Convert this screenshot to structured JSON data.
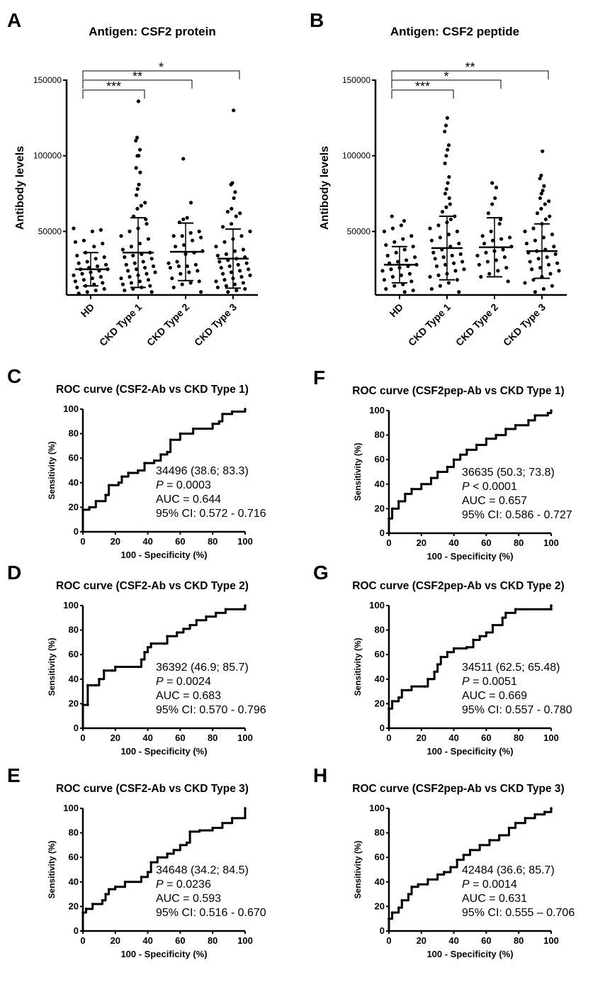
{
  "chart_data": [
    {
      "panel": "A",
      "type": "scatter",
      "title": "Antigen: CSF2 protein",
      "ylabel": "Antibody levels",
      "xlabel": "",
      "ylim": [
        8000,
        150000
      ],
      "yticks": [
        "50000",
        "100000",
        "150000"
      ],
      "ytick_values": [
        50000,
        100000,
        150000
      ],
      "categories": [
        "HD",
        "CKD Type 1",
        "CKD Type 2",
        "CKD Type 3"
      ],
      "groups": [
        {
          "name": "HD",
          "mean": 25000,
          "sd": 11000,
          "values": [
            52000,
            51000,
            50000,
            44000,
            43000,
            42000,
            40000,
            36000,
            34000,
            33000,
            32000,
            30000,
            29000,
            28000,
            27000,
            26000,
            25000,
            25000,
            24000,
            23000,
            22000,
            21000,
            20000,
            19000,
            18000,
            17000,
            16000,
            15000,
            14000,
            13000,
            12000,
            11000,
            10000,
            9000
          ]
        },
        {
          "name": "CKD Type 1",
          "mean": 36000,
          "sd": 23000,
          "values": [
            136000,
            112000,
            110000,
            104000,
            100000,
            100000,
            92000,
            89000,
            81000,
            78000,
            74000,
            69000,
            67000,
            65000,
            60000,
            58000,
            55000,
            52000,
            50000,
            47000,
            45000,
            42000,
            40000,
            38000,
            36000,
            35000,
            34000,
            33000,
            32000,
            30000,
            29000,
            28000,
            27000,
            26000,
            25000,
            24000,
            23000,
            22000,
            21000,
            20000,
            19000,
            18000,
            17000,
            16000,
            15000,
            14000,
            13000,
            12000,
            11000,
            10000
          ]
        },
        {
          "name": "CKD Type 2",
          "mean": 36500,
          "sd": 19000,
          "values": [
            98000,
            69000,
            59000,
            58000,
            56000,
            50000,
            49000,
            47000,
            47000,
            46000,
            44000,
            41000,
            40000,
            37000,
            36000,
            35000,
            30000,
            29000,
            28000,
            27000,
            27000,
            26000,
            24000,
            23000,
            22000,
            19000,
            17000,
            16000,
            15000,
            13000,
            10000
          ]
        },
        {
          "name": "CKD Type 3",
          "mean": 32000,
          "sd": 19500,
          "values": [
            130000,
            82000,
            81000,
            76000,
            72000,
            65000,
            63000,
            62000,
            60000,
            55000,
            53000,
            50000,
            47000,
            45000,
            43000,
            40000,
            38000,
            37000,
            35000,
            34000,
            33000,
            32000,
            31000,
            30000,
            29000,
            28000,
            27000,
            26000,
            25000,
            24000,
            23000,
            22000,
            21000,
            20000,
            19000,
            18000,
            17000,
            16000,
            15000,
            14000,
            13000,
            12000,
            11000,
            10000
          ]
        }
      ],
      "significance": [
        {
          "from": 0,
          "to": 1,
          "label": "***"
        },
        {
          "from": 0,
          "to": 2,
          "label": "**"
        },
        {
          "from": 0,
          "to": 3,
          "label": "*"
        }
      ]
    },
    {
      "panel": "B",
      "type": "scatter",
      "title": "Antigen: CSF2 peptide",
      "ylabel": "Antibody levels",
      "xlabel": "",
      "ylim": [
        8000,
        150000
      ],
      "yticks": [
        "50000",
        "100000",
        "150000"
      ],
      "ytick_values": [
        50000,
        100000,
        150000
      ],
      "categories": [
        "HD",
        "CKD Type 1",
        "CKD Type 2",
        "CKD Type 3"
      ],
      "groups": [
        {
          "name": "HD",
          "mean": 28000,
          "sd": 12000,
          "values": [
            60000,
            57000,
            54000,
            52000,
            50000,
            47000,
            45000,
            43000,
            41000,
            40000,
            38000,
            36000,
            34000,
            33000,
            31000,
            30000,
            29000,
            28000,
            27000,
            26000,
            25000,
            24000,
            22000,
            21000,
            20000,
            18000,
            17000,
            15000,
            14000,
            12000,
            11000,
            10000
          ]
        },
        {
          "name": "CKD Type 1",
          "mean": 39000,
          "sd": 21000,
          "values": [
            125000,
            120000,
            116000,
            107000,
            104000,
            100000,
            95000,
            86000,
            82000,
            78000,
            75000,
            72000,
            68000,
            66000,
            63000,
            60000,
            58000,
            56000,
            54000,
            52000,
            50000,
            48000,
            46000,
            44000,
            42000,
            40000,
            38000,
            36000,
            35000,
            34000,
            33000,
            32000,
            30000,
            29000,
            28000,
            27000,
            25000,
            24000,
            22000,
            21000,
            20000,
            18000,
            16000,
            14000,
            12000,
            10000
          ]
        },
        {
          "name": "CKD Type 2",
          "mean": 39500,
          "sd": 19500,
          "values": [
            82000,
            79000,
            72000,
            68000,
            62000,
            58000,
            55000,
            50000,
            47000,
            46000,
            45000,
            44000,
            42000,
            40000,
            38000,
            37000,
            36000,
            34000,
            33000,
            31000,
            30000,
            28000,
            26000,
            24000,
            22000,
            20000,
            17000
          ]
        },
        {
          "name": "CKD Type 3",
          "mean": 37000,
          "sd": 18000,
          "values": [
            103000,
            87000,
            85000,
            80000,
            77000,
            75000,
            72000,
            70000,
            68000,
            65000,
            62000,
            60000,
            58000,
            55000,
            52000,
            50000,
            48000,
            46000,
            44000,
            42000,
            40000,
            38000,
            37000,
            36000,
            35000,
            33000,
            32000,
            30000,
            29000,
            28000,
            26000,
            25000,
            24000,
            22000,
            20000,
            18000,
            16000,
            14000,
            12000,
            10000
          ]
        }
      ],
      "significance": [
        {
          "from": 0,
          "to": 1,
          "label": "***"
        },
        {
          "from": 0,
          "to": 2,
          "label": "*"
        },
        {
          "from": 0,
          "to": 3,
          "label": "**"
        }
      ]
    },
    {
      "panel": "C",
      "type": "line",
      "title": "ROC curve (CSF2-Ab vs CKD Type 1)",
      "xlabel": "100 - Specificity (%)",
      "ylabel": "Sensitivity (%)",
      "xlim": [
        0,
        100
      ],
      "ylim": [
        0,
        100
      ],
      "ticks": [
        "0",
        "20",
        "40",
        "60",
        "80",
        "100"
      ],
      "annotation": {
        "cutoff": "34496 (38.6; 83.3)",
        "p_symbol": "P",
        "p_rest": " = 0.0003",
        "auc": "AUC = 0.644",
        "ci": "95% CI: 0.572 - 0.716"
      },
      "points": [
        [
          0,
          0
        ],
        [
          0,
          18
        ],
        [
          4,
          20
        ],
        [
          8,
          25
        ],
        [
          14,
          30
        ],
        [
          16,
          38
        ],
        [
          22,
          40
        ],
        [
          24,
          45
        ],
        [
          28,
          48
        ],
        [
          34,
          50
        ],
        [
          38,
          56
        ],
        [
          44,
          58
        ],
        [
          48,
          63
        ],
        [
          52,
          65
        ],
        [
          54,
          75
        ],
        [
          60,
          80
        ],
        [
          68,
          84
        ],
        [
          80,
          88
        ],
        [
          84,
          90
        ],
        [
          86,
          96
        ],
        [
          92,
          98
        ],
        [
          100,
          100
        ]
      ]
    },
    {
      "panel": "D",
      "type": "line",
      "title": "ROC curve (CSF2-Ab vs CKD Type 2)",
      "xlabel": "100 - Specificity (%)",
      "ylabel": "Sensitivity (%)",
      "xlim": [
        0,
        100
      ],
      "ylim": [
        0,
        100
      ],
      "ticks": [
        "0",
        "20",
        "40",
        "60",
        "80",
        "100"
      ],
      "annotation": {
        "cutoff": "36392 (46.9; 85.7)",
        "p_symbol": "P",
        "p_rest": " = 0.0024",
        "auc": "AUC = 0.683",
        "ci": "95% CI: 0.570 - 0.796"
      },
      "points": [
        [
          0,
          0
        ],
        [
          0,
          19
        ],
        [
          3,
          19
        ],
        [
          3,
          35
        ],
        [
          8,
          35
        ],
        [
          10,
          40
        ],
        [
          13,
          47
        ],
        [
          18,
          47
        ],
        [
          20,
          50
        ],
        [
          34,
          50
        ],
        [
          36,
          56
        ],
        [
          38,
          62
        ],
        [
          40,
          66
        ],
        [
          42,
          69
        ],
        [
          50,
          69
        ],
        [
          52,
          75
        ],
        [
          58,
          78
        ],
        [
          62,
          81
        ],
        [
          66,
          84
        ],
        [
          70,
          88
        ],
        [
          76,
          91
        ],
        [
          82,
          94
        ],
        [
          88,
          97
        ],
        [
          99,
          97
        ],
        [
          100,
          100
        ]
      ]
    },
    {
      "panel": "E",
      "type": "line",
      "title": "ROC curve (CSF2-Ab vs CKD Type 3)",
      "xlabel": "100 - Specificity (%)",
      "ylabel": "Sensitivity (%)",
      "xlim": [
        0,
        100
      ],
      "ylim": [
        0,
        100
      ],
      "ticks": [
        "0",
        "20",
        "40",
        "60",
        "80",
        "100"
      ],
      "annotation": {
        "cutoff": "34648 (34.2; 84.5)",
        "p_symbol": "P",
        "p_rest": " = 0.0236",
        "auc": "AUC =  0.593",
        "ci": "95% CI: 0.516 - 0.670"
      },
      "points": [
        [
          0,
          0
        ],
        [
          0,
          15
        ],
        [
          2,
          18
        ],
        [
          6,
          22
        ],
        [
          12,
          25
        ],
        [
          14,
          30
        ],
        [
          16,
          34
        ],
        [
          20,
          36
        ],
        [
          26,
          40
        ],
        [
          36,
          44
        ],
        [
          40,
          48
        ],
        [
          42,
          56
        ],
        [
          46,
          60
        ],
        [
          52,
          63
        ],
        [
          56,
          66
        ],
        [
          60,
          70
        ],
        [
          64,
          72
        ],
        [
          66,
          81
        ],
        [
          72,
          82
        ],
        [
          80,
          84
        ],
        [
          86,
          88
        ],
        [
          92,
          92
        ],
        [
          100,
          100
        ]
      ]
    },
    {
      "panel": "F",
      "type": "line",
      "title": "ROC curve (CSF2pep-Ab vs CKD Type 1)",
      "xlabel": "100 - Specificity (%)",
      "ylabel": "Sensitivity (%)",
      "xlim": [
        0,
        100
      ],
      "ylim": [
        0,
        100
      ],
      "ticks": [
        "0",
        "20",
        "40",
        "60",
        "80",
        "100"
      ],
      "annotation": {
        "cutoff": "36635 (50.3; 73.8)",
        "p_symbol": "P",
        "p_rest": " < 0.0001",
        "auc": "AUC = 0.657",
        "ci": "95% CI: 0.586 - 0.727"
      },
      "points": [
        [
          0,
          0
        ],
        [
          0,
          12
        ],
        [
          2,
          20
        ],
        [
          6,
          26
        ],
        [
          10,
          32
        ],
        [
          14,
          36
        ],
        [
          20,
          40
        ],
        [
          26,
          45
        ],
        [
          30,
          50
        ],
        [
          36,
          54
        ],
        [
          40,
          60
        ],
        [
          44,
          64
        ],
        [
          48,
          68
        ],
        [
          54,
          72
        ],
        [
          60,
          77
        ],
        [
          66,
          80
        ],
        [
          72,
          85
        ],
        [
          78,
          88
        ],
        [
          86,
          92
        ],
        [
          90,
          96
        ],
        [
          98,
          98
        ],
        [
          100,
          100
        ]
      ]
    },
    {
      "panel": "G",
      "type": "line",
      "title": "ROC curve (CSF2pep-Ab vs CKD Type 2)",
      "xlabel": "100 - Specificity (%)",
      "ylabel": "Sensitivity (%)",
      "xlim": [
        0,
        100
      ],
      "ylim": [
        0,
        100
      ],
      "ticks": [
        "0",
        "20",
        "40",
        "60",
        "80",
        "100"
      ],
      "annotation": {
        "cutoff": "34511 (62.5; 65.48)",
        "p_symbol": "P",
        "p_rest": " = 0.0051",
        "auc": "AUC = 0.669",
        "ci": "95% CI: 0.557 - 0.780"
      },
      "points": [
        [
          0,
          0
        ],
        [
          0,
          16
        ],
        [
          2,
          22
        ],
        [
          6,
          25
        ],
        [
          8,
          31
        ],
        [
          12,
          31
        ],
        [
          14,
          34
        ],
        [
          22,
          34
        ],
        [
          24,
          40
        ],
        [
          28,
          46
        ],
        [
          30,
          52
        ],
        [
          32,
          58
        ],
        [
          36,
          62
        ],
        [
          40,
          65
        ],
        [
          48,
          66
        ],
        [
          52,
          72
        ],
        [
          56,
          75
        ],
        [
          60,
          78
        ],
        [
          64,
          84
        ],
        [
          70,
          90
        ],
        [
          72,
          94
        ],
        [
          78,
          97
        ],
        [
          100,
          97
        ],
        [
          100,
          100
        ]
      ]
    },
    {
      "panel": "H",
      "type": "line",
      "title": "ROC curve (CSF2pep-Ab vs CKD Type 3)",
      "xlabel": "100 - Specificity (%)",
      "ylabel": "Sensitivity (%)",
      "xlim": [
        0,
        100
      ],
      "ylim": [
        0,
        100
      ],
      "ticks": [
        "0",
        "20",
        "40",
        "60",
        "80",
        "100"
      ],
      "annotation": {
        "cutoff": "42484 (36.6; 85.7)",
        "p_symbol": "P",
        "p_rest": " = 0.0014",
        "auc": "AUC =  0.631",
        "ci": "95% CI: 0.555 – 0.706"
      },
      "points": [
        [
          0,
          0
        ],
        [
          0,
          10
        ],
        [
          2,
          15
        ],
        [
          6,
          19
        ],
        [
          8,
          25
        ],
        [
          12,
          30
        ],
        [
          14,
          36
        ],
        [
          18,
          38
        ],
        [
          24,
          42
        ],
        [
          30,
          46
        ],
        [
          34,
          48
        ],
        [
          38,
          52
        ],
        [
          42,
          58
        ],
        [
          46,
          62
        ],
        [
          50,
          66
        ],
        [
          56,
          70
        ],
        [
          62,
          74
        ],
        [
          68,
          78
        ],
        [
          74,
          84
        ],
        [
          78,
          88
        ],
        [
          84,
          92
        ],
        [
          90,
          95
        ],
        [
          96,
          97
        ],
        [
          100,
          100
        ]
      ]
    }
  ]
}
